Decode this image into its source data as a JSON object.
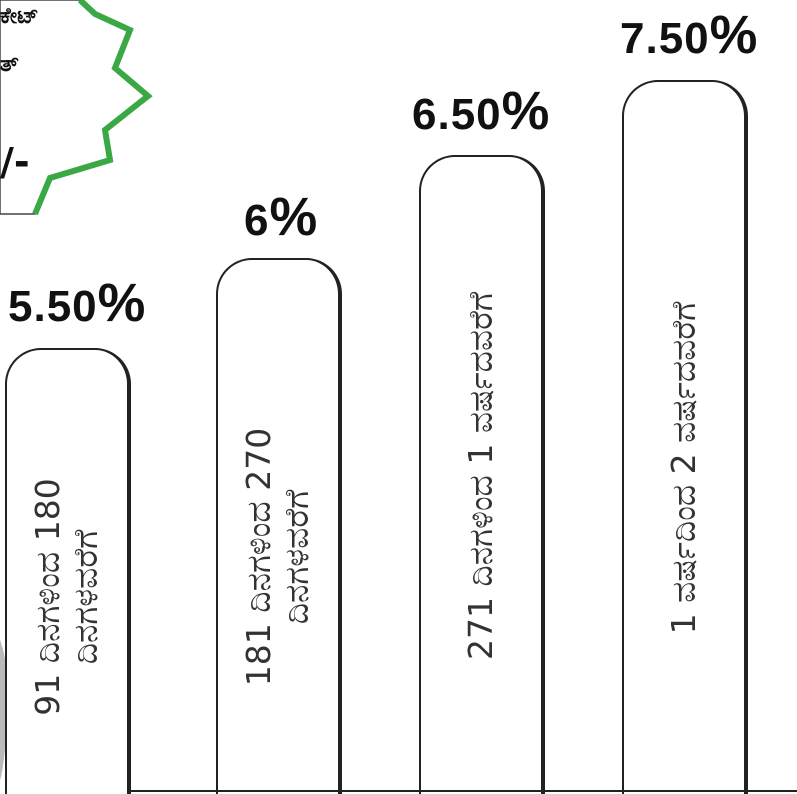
{
  "badge": {
    "line1": "ಕೇಟ್",
    "line2": "ತ್",
    "line3": "/-"
  },
  "pillars": [
    {
      "rate": "5.50",
      "pct": "%",
      "label_line1": "91 ದಿನಗಳಿಂದ 180",
      "label_line2": "ದಿನಗಳವರೆಗೆ"
    },
    {
      "rate": "6",
      "pct": "%",
      "label_line1": "181 ದಿನಗಳಿಂದ 270",
      "label_line2": "ದಿನಗಳವರೆಗೆ"
    },
    {
      "rate": "6.50",
      "pct": "%",
      "label_line1": "271 ದಿನಗಳಿಂದ 1 ವರ್ಷದವರೆಗೆ",
      "label_line2": ""
    },
    {
      "rate": "7.50",
      "pct": "%",
      "label_line1": "1 ವರ್ಷದಿಂದ 2 ವರ್ಷದವರೆಗೆ",
      "label_line2": ""
    }
  ],
  "colors": {
    "badge_green": "#3aa845",
    "outline": "#222222"
  }
}
